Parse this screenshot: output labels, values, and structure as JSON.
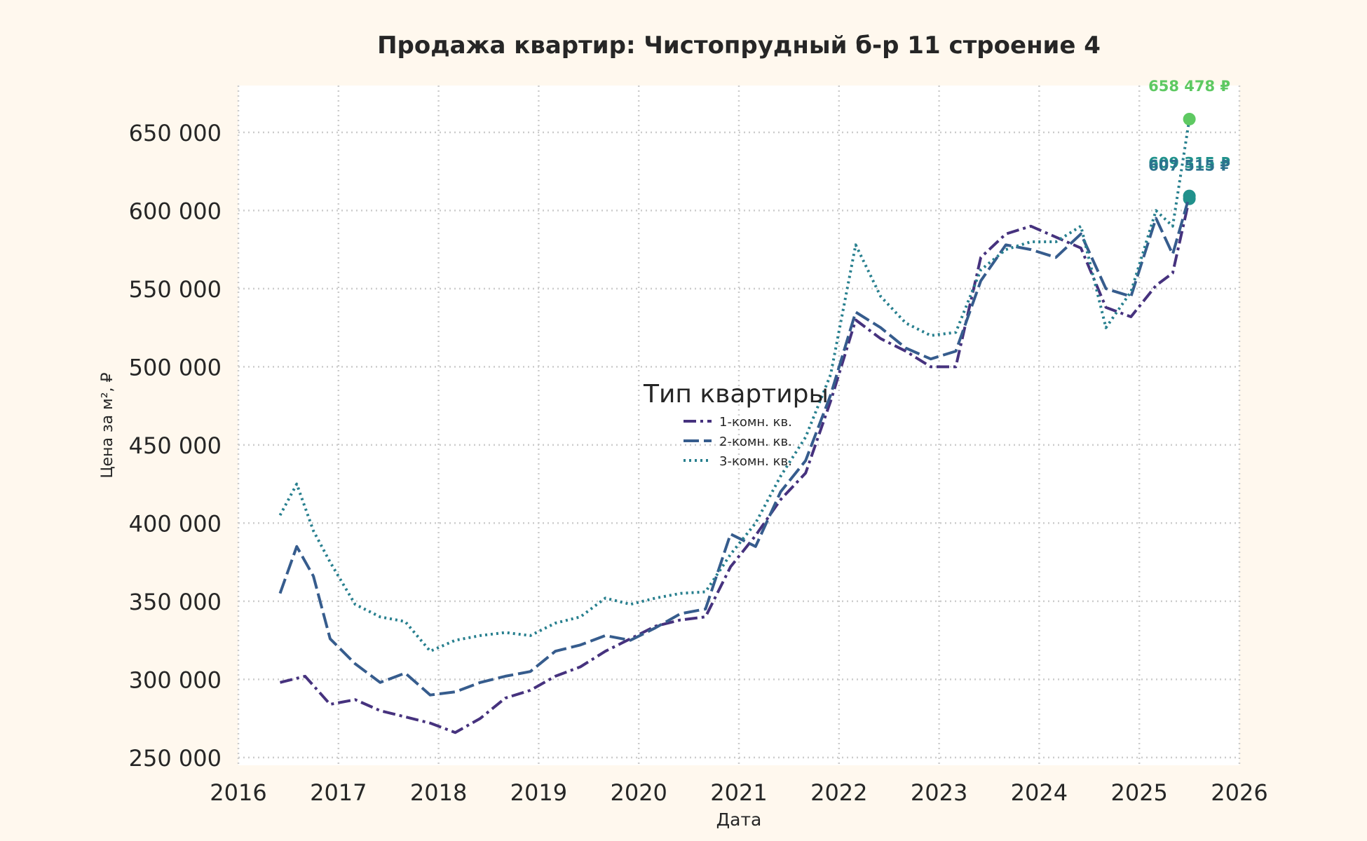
{
  "chart_data": {
    "type": "line",
    "title": "Продажа квартир: Чистопрудный б-р 11 строение 4",
    "xlabel": "Дата",
    "ylabel": "Цена за м², ₽",
    "x_axis": {
      "type": "date",
      "range": [
        "2016-01-01",
        "2026-01-01"
      ]
    },
    "xlim": [
      2016,
      2026
    ],
    "ylim": [
      245000,
      680000
    ],
    "x_ticks": [
      "2016",
      "2017",
      "2018",
      "2019",
      "2020",
      "2021",
      "2022",
      "2023",
      "2024",
      "2025",
      "2026"
    ],
    "y_ticks": [
      "250 000",
      "300 000",
      "350 000",
      "400 000",
      "450 000",
      "500 000",
      "550 000",
      "600 000",
      "650 000"
    ],
    "grid": true,
    "legend": {
      "title": "Тип квартиры",
      "placement": "center"
    },
    "series": [
      {
        "name": "1-комн. кв.",
        "color": "#46327e",
        "dash": "dash-dot",
        "points": [
          [
            "2016-06",
            298000
          ],
          [
            "2016-09",
            302000
          ],
          [
            "2016-12",
            284000
          ],
          [
            "2017-03",
            287000
          ],
          [
            "2017-06",
            280000
          ],
          [
            "2017-09",
            276000
          ],
          [
            "2017-12",
            272000
          ],
          [
            "2018-03",
            266000
          ],
          [
            "2018-06",
            275000
          ],
          [
            "2018-09",
            288000
          ],
          [
            "2018-12",
            293000
          ],
          [
            "2019-03",
            302000
          ],
          [
            "2019-06",
            308000
          ],
          [
            "2019-09",
            318000
          ],
          [
            "2019-12",
            326000
          ],
          [
            "2020-03",
            334000
          ],
          [
            "2020-06",
            338000
          ],
          [
            "2020-09",
            340000
          ],
          [
            "2020-12",
            372000
          ],
          [
            "2021-03",
            392000
          ],
          [
            "2021-06",
            415000
          ],
          [
            "2021-09",
            432000
          ],
          [
            "2021-12",
            478000
          ],
          [
            "2022-03",
            530000
          ],
          [
            "2022-06",
            518000
          ],
          [
            "2022-09",
            510000
          ],
          [
            "2022-12",
            500000
          ],
          [
            "2023-03",
            500000
          ],
          [
            "2023-06",
            570000
          ],
          [
            "2023-09",
            585000
          ],
          [
            "2023-12",
            590000
          ],
          [
            "2024-03",
            583000
          ],
          [
            "2024-06",
            576000
          ],
          [
            "2024-09",
            538000
          ],
          [
            "2024-12",
            532000
          ],
          [
            "2025-03",
            552000
          ],
          [
            "2025-05",
            560000
          ],
          [
            "2025-07",
            607515
          ]
        ]
      },
      {
        "name": "2-комн. кв.",
        "color": "#365c8d",
        "dash": "long-dash",
        "points": [
          [
            "2016-06",
            355000
          ],
          [
            "2016-08",
            385000
          ],
          [
            "2016-10",
            366000
          ],
          [
            "2016-12",
            326000
          ],
          [
            "2017-03",
            310000
          ],
          [
            "2017-06",
            298000
          ],
          [
            "2017-09",
            304000
          ],
          [
            "2017-12",
            290000
          ],
          [
            "2018-03",
            292000
          ],
          [
            "2018-06",
            298000
          ],
          [
            "2018-09",
            302000
          ],
          [
            "2018-12",
            305000
          ],
          [
            "2019-03",
            318000
          ],
          [
            "2019-06",
            322000
          ],
          [
            "2019-09",
            328000
          ],
          [
            "2019-12",
            325000
          ],
          [
            "2020-03",
            333000
          ],
          [
            "2020-06",
            342000
          ],
          [
            "2020-09",
            345000
          ],
          [
            "2020-12",
            393000
          ],
          [
            "2021-03",
            385000
          ],
          [
            "2021-06",
            420000
          ],
          [
            "2021-09",
            440000
          ],
          [
            "2021-12",
            482000
          ],
          [
            "2022-03",
            535000
          ],
          [
            "2022-06",
            525000
          ],
          [
            "2022-09",
            512000
          ],
          [
            "2022-12",
            505000
          ],
          [
            "2023-03",
            510000
          ],
          [
            "2023-06",
            555000
          ],
          [
            "2023-09",
            578000
          ],
          [
            "2023-12",
            575000
          ],
          [
            "2024-03",
            570000
          ],
          [
            "2024-06",
            585000
          ],
          [
            "2024-09",
            550000
          ],
          [
            "2024-12",
            545000
          ],
          [
            "2025-03",
            595000
          ],
          [
            "2025-05",
            572000
          ],
          [
            "2025-07",
            609315
          ]
        ]
      },
      {
        "name": "3-комн. кв.",
        "color": "#277f8e",
        "dash": "dotted",
        "points": [
          [
            "2016-06",
            405000
          ],
          [
            "2016-08",
            425000
          ],
          [
            "2016-10",
            395000
          ],
          [
            "2016-12",
            375000
          ],
          [
            "2017-03",
            348000
          ],
          [
            "2017-06",
            340000
          ],
          [
            "2017-09",
            337000
          ],
          [
            "2017-12",
            318000
          ],
          [
            "2018-03",
            325000
          ],
          [
            "2018-06",
            328000
          ],
          [
            "2018-09",
            330000
          ],
          [
            "2018-12",
            328000
          ],
          [
            "2019-03",
            336000
          ],
          [
            "2019-06",
            340000
          ],
          [
            "2019-09",
            352000
          ],
          [
            "2019-12",
            348000
          ],
          [
            "2020-03",
            352000
          ],
          [
            "2020-06",
            355000
          ],
          [
            "2020-09",
            356000
          ],
          [
            "2020-12",
            380000
          ],
          [
            "2021-03",
            400000
          ],
          [
            "2021-06",
            430000
          ],
          [
            "2021-09",
            455000
          ],
          [
            "2021-12",
            495000
          ],
          [
            "2022-03",
            578000
          ],
          [
            "2022-06",
            545000
          ],
          [
            "2022-09",
            528000
          ],
          [
            "2022-12",
            520000
          ],
          [
            "2023-03",
            522000
          ],
          [
            "2023-06",
            562000
          ],
          [
            "2023-09",
            575000
          ],
          [
            "2023-12",
            580000
          ],
          [
            "2024-03",
            580000
          ],
          [
            "2024-06",
            590000
          ],
          [
            "2024-09",
            525000
          ],
          [
            "2024-12",
            548000
          ],
          [
            "2025-03",
            600000
          ],
          [
            "2025-05",
            590000
          ],
          [
            "2025-07",
            658478
          ]
        ]
      }
    ],
    "annotations": [
      {
        "text": "658 478 ₽",
        "x": "2025-07",
        "y": 658478,
        "color": "#5ec962"
      },
      {
        "text": "609 315 ₽",
        "x": "2025-07",
        "y": 609315,
        "color": "#21918c"
      },
      {
        "text": "607 515 ₽",
        "x": "2025-07",
        "y": 607515,
        "color": "#2c728e"
      }
    ]
  }
}
